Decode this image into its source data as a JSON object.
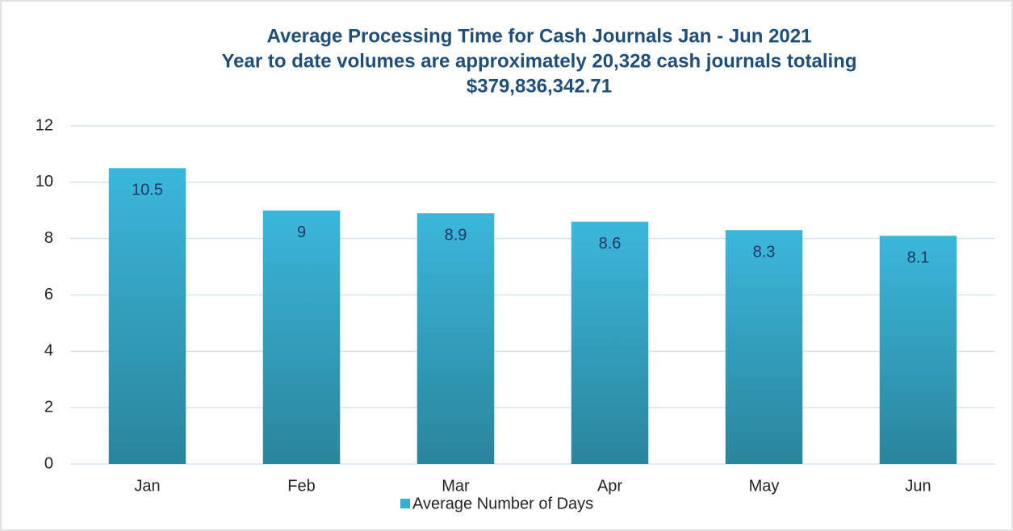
{
  "chart_data": {
    "type": "bar",
    "title": "Average Processing Time for Cash Journals Jan - Jun 2021",
    "subtitle": [
      "Year to date volumes are approximately 20,328 cash journals totaling",
      "$379,836,342.71"
    ],
    "categories": [
      "Jan",
      "Feb",
      "Mar",
      "Apr",
      "May",
      "Jun"
    ],
    "series": [
      {
        "name": "Average Number of Days",
        "color": "#35afd3",
        "values": [
          10.5,
          9,
          8.9,
          8.6,
          8.3,
          8.1
        ]
      }
    ],
    "ylim": [
      0,
      12
    ],
    "yticks": [
      0,
      2,
      4,
      6,
      8,
      10,
      12
    ],
    "grid": true,
    "legend": "bottom"
  }
}
